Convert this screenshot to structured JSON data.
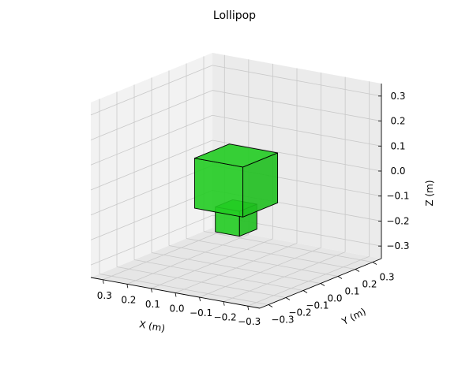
{
  "colors": {
    "pane_left": "#f2f2f2",
    "pane_right": "#ebebeb",
    "pane_floor": "#e6e6e6",
    "grid": "#c8c8c8",
    "box_face": "#22cc22",
    "box_edge": "#000000"
  },
  "chart_data": {
    "type": "3d-box",
    "title": "Lollipop",
    "xlabel": "X (m)",
    "ylabel": "Y (m)",
    "zlabel": "Z (m)",
    "xlim": [
      -0.35,
      0.35
    ],
    "ylim": [
      -0.35,
      0.35
    ],
    "zlim": [
      -0.35,
      0.35
    ],
    "x_ticks": [
      "−0.3",
      "−0.2",
      "−0.1",
      "0.0",
      "0.1",
      "0.2",
      "0.3"
    ],
    "y_ticks": [
      "−0.3",
      "−0.2",
      "−0.1",
      "0.0",
      "0.1",
      "0.2",
      "0.3"
    ],
    "z_ticks": [
      "−0.3",
      "−0.2",
      "−0.1",
      "0.0",
      "0.1",
      "0.2",
      "0.3"
    ],
    "grid": true,
    "boxes": [
      {
        "name": "body",
        "x": [
          -0.1,
          0.1
        ],
        "y": [
          -0.1,
          0.1
        ],
        "z": [
          -0.1,
          0.1
        ]
      },
      {
        "name": "stick",
        "x": [
          -0.05,
          0.05
        ],
        "y": [
          -0.05,
          0.05
        ],
        "z": [
          -0.2,
          -0.1
        ]
      }
    ]
  }
}
